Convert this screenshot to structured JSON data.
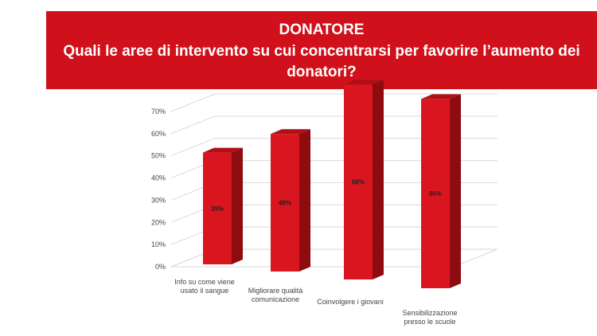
{
  "header": {
    "title": "DONATORE",
    "subtitle": "Quali le aree di intervento su cui concentrarsi per favorire l’aumento dei donatori?"
  },
  "colors": {
    "header_bg": "#d0101a",
    "bar_front": "#d9161f",
    "bar_side": "#8e0b10",
    "bar_top": "#b10f16"
  },
  "chart_data": {
    "type": "bar",
    "style": "3d-column",
    "categories": [
      [
        "Info su come viene",
        "usato il sangue"
      ],
      [
        "Migliorare qualità",
        "comunicazione"
      ],
      [
        "Coinvolgere i giovani"
      ],
      [
        "Sensibilizzazione",
        "presso le scuole"
      ]
    ],
    "values": [
      39,
      48,
      68,
      66
    ],
    "data_labels": [
      "39%",
      "48%",
      "68%",
      "66%"
    ],
    "yticks": [
      "0%",
      "10%",
      "20%",
      "30%",
      "40%",
      "50%",
      "60%",
      "70%"
    ],
    "ylim": [
      0,
      70
    ],
    "grid": true,
    "legend": false
  }
}
